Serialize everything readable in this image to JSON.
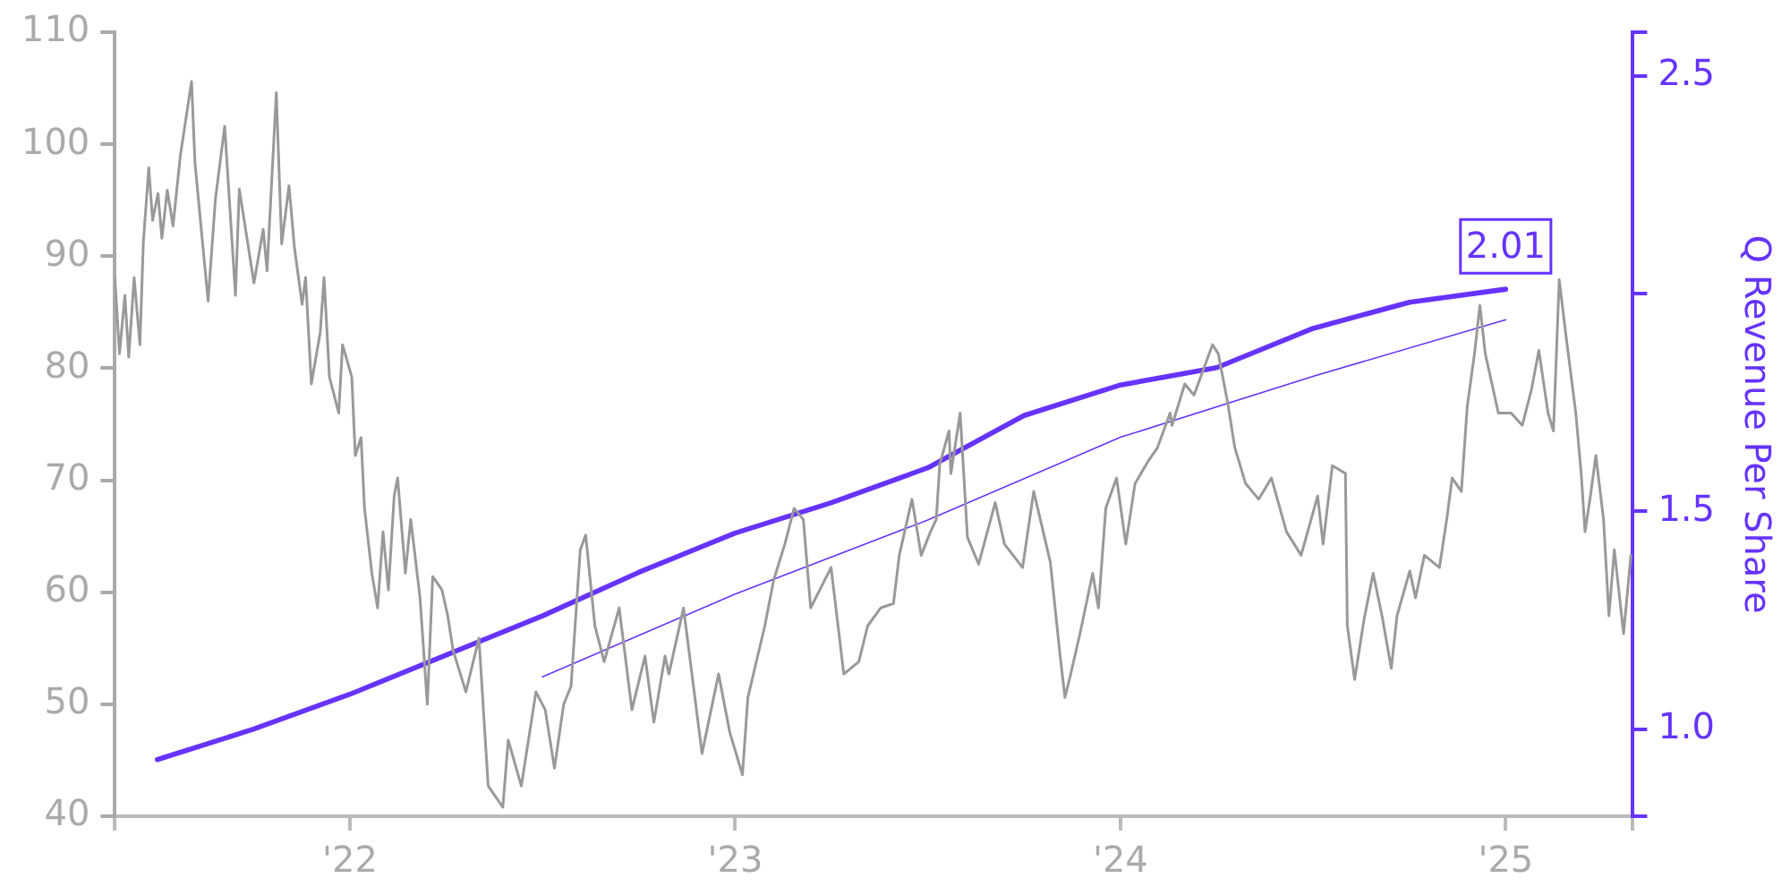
{
  "chart_data": {
    "type": "line",
    "y2label": "Q Revenue Per Share",
    "xlim": [
      2021.39,
      2025.33
    ],
    "xticks": [
      {
        "value": 2021.39,
        "label": null
      },
      {
        "value": 2022,
        "label": "'22"
      },
      {
        "value": 2023,
        "label": "'23"
      },
      {
        "value": 2024,
        "label": "'24"
      },
      {
        "value": 2025,
        "label": "'25"
      },
      {
        "value": 2025.33,
        "label": null
      }
    ],
    "ylim": [
      40,
      110
    ],
    "yticks": [
      40,
      50,
      60,
      70,
      80,
      90,
      100,
      110
    ],
    "y2lim": [
      0.8,
      2.6
    ],
    "y2ticks": [
      {
        "value": 0.8,
        "label": null
      },
      {
        "value": 1,
        "label": "1.0"
      },
      {
        "value": 1.5,
        "label": "1.5"
      },
      {
        "value": 2,
        "label": null
      },
      {
        "value": 2.5,
        "label": "2.5"
      },
      {
        "value": 2.6,
        "label": null
      }
    ],
    "legend": false,
    "grid": false,
    "marker": "none",
    "series": [
      {
        "color": "#999999",
        "axis": "y",
        "x": [
          2021.39,
          2021.402,
          2021.416,
          2021.426,
          2021.44,
          2021.455,
          2021.464,
          2021.478,
          2021.488,
          2021.502,
          2021.512,
          2021.526,
          2021.541,
          2021.56,
          2021.589,
          2021.598,
          2021.632,
          2021.651,
          2021.675,
          2021.703,
          2021.713,
          2021.751,
          2021.775,
          2021.785,
          2021.809,
          2021.823,
          2021.842,
          2021.856,
          2021.876,
          2021.885,
          2021.9,
          2021.923,
          2021.933,
          2021.947,
          2021.971,
          2021.981,
          2022.005,
          2022.014,
          2022.029,
          2022.038,
          2022.057,
          2022.072,
          2022.086,
          2022.1,
          2022.115,
          2022.124,
          2022.144,
          2022.158,
          2022.182,
          2022.201,
          2022.215,
          2022.239,
          2022.254,
          2022.268,
          2022.301,
          2022.335,
          2022.359,
          2022.397,
          2022.411,
          2022.445,
          2022.483,
          2022.507,
          2022.531,
          2022.555,
          2022.574,
          2022.598,
          2022.612,
          2022.636,
          2022.66,
          2022.699,
          2022.732,
          2022.766,
          2022.789,
          2022.818,
          2022.828,
          2022.866,
          2022.914,
          2022.957,
          2022.986,
          2023.019,
          2023.033,
          2023.077,
          2023.1,
          2023.129,
          2023.153,
          2023.177,
          2023.196,
          2023.249,
          2023.282,
          2023.321,
          2023.344,
          2023.378,
          2023.411,
          2023.426,
          2023.459,
          2023.483,
          2023.507,
          2023.522,
          2023.531,
          2023.555,
          2023.56,
          2023.584,
          2023.603,
          2023.632,
          2023.675,
          2023.699,
          2023.746,
          2023.775,
          2023.818,
          2023.842,
          2023.856,
          2023.871,
          2023.895,
          2023.928,
          2023.943,
          2023.962,
          2023.99,
          2024.014,
          2024.038,
          2024.072,
          2024.096,
          2024.129,
          2024.134,
          2024.167,
          2024.191,
          2024.239,
          2024.254,
          2024.278,
          2024.297,
          2024.325,
          2024.359,
          2024.392,
          2024.431,
          2024.469,
          2024.512,
          2024.526,
          2024.55,
          2024.584,
          2024.589,
          2024.608,
          2024.632,
          2024.656,
          2024.679,
          2024.703,
          2024.718,
          2024.751,
          2024.766,
          2024.789,
          2024.828,
          2024.847,
          2024.861,
          2024.885,
          2024.9,
          2024.919,
          2024.933,
          2024.947,
          2024.981,
          2025.014,
          2025.043,
          2025.067,
          2025.086,
          2025.11,
          2025.124,
          2025.139,
          2025.158,
          2025.182,
          2025.196,
          2025.206,
          2025.22,
          2025.234,
          2025.254,
          2025.268,
          2025.282,
          2025.306,
          2025.325
        ],
        "values": [
          88.1,
          81.3,
          86.5,
          81,
          88.1,
          82.1,
          91.3,
          97.9,
          93.2,
          95.6,
          91.6,
          95.9,
          92.7,
          99,
          105.6,
          98.3,
          86,
          95.1,
          101.6,
          86.5,
          96,
          87.6,
          92.4,
          88.7,
          104.6,
          91.1,
          96.3,
          90.8,
          85.7,
          88.1,
          78.6,
          83.2,
          88.1,
          79.2,
          76,
          82.1,
          79.2,
          72.2,
          73.8,
          67.5,
          61.7,
          58.6,
          65.4,
          60.2,
          68.6,
          70.2,
          61.7,
          66.5,
          59.5,
          50,
          61.4,
          60.2,
          57.9,
          54.8,
          51.1,
          55.9,
          42.7,
          40.8,
          46.8,
          42.7,
          51.1,
          49.5,
          44.3,
          50,
          51.6,
          63.8,
          65.1,
          57,
          53.8,
          58.6,
          49.5,
          54.3,
          48.4,
          54.3,
          52.7,
          58.6,
          45.6,
          52.7,
          47.5,
          43.7,
          50.6,
          57,
          61.1,
          64.3,
          67.5,
          66.5,
          58.6,
          62.2,
          52.7,
          53.8,
          57,
          58.6,
          59,
          63.3,
          68.3,
          63.3,
          65.4,
          66.5,
          71.4,
          74.4,
          70.6,
          76,
          64.9,
          62.5,
          68,
          64.3,
          62.2,
          69,
          62.7,
          54.8,
          50.6,
          52.7,
          56.3,
          61.7,
          58.6,
          67.5,
          70.2,
          64.3,
          69.7,
          71.7,
          72.9,
          76,
          74.9,
          78.6,
          77.6,
          82.1,
          81.3,
          77,
          72.9,
          69.7,
          68.3,
          70.2,
          65.4,
          63.3,
          68.6,
          64.3,
          71.3,
          70.6,
          57,
          52.2,
          57.5,
          61.7,
          57.9,
          53.2,
          57.9,
          61.9,
          59.5,
          63.3,
          62.2,
          66.5,
          70.2,
          69,
          76.5,
          81.3,
          85.6,
          81.3,
          76,
          76,
          74.9,
          78.1,
          81.6,
          76,
          74.4,
          87.9,
          82.5,
          76,
          70.6,
          65.4,
          68.6,
          72.2,
          66.5,
          57.9,
          63.8,
          56.3,
          63.3
        ]
      },
      {
        "color": "#6633ff",
        "axis": "y2",
        "x": [
          2021.5,
          2021.75,
          2022,
          2022.25,
          2022.5,
          2022.75,
          2023,
          2023.25,
          2023.5,
          2023.75,
          2024,
          2024.25,
          2024.5,
          2024.75,
          2025
        ],
        "values": [
          0.93,
          1.0,
          1.08,
          1.17,
          1.26,
          1.36,
          1.45,
          1.52,
          1.6,
          1.72,
          1.79,
          1.83,
          1.92,
          1.98,
          2.01
        ],
        "value_labels": [
          null,
          null,
          null,
          null,
          null,
          null,
          null,
          null,
          null,
          null,
          null,
          null,
          null,
          null,
          "2.01"
        ]
      },
      {
        "type": "line",
        "color": "#6633ff",
        "axis": "y2",
        "x": [
          2022.5,
          2023,
          2023.5,
          2024,
          2024.5,
          2025
        ],
        "values": [
          1.12,
          1.31,
          1.48,
          1.67,
          1.81,
          1.94
        ]
      }
    ]
  }
}
